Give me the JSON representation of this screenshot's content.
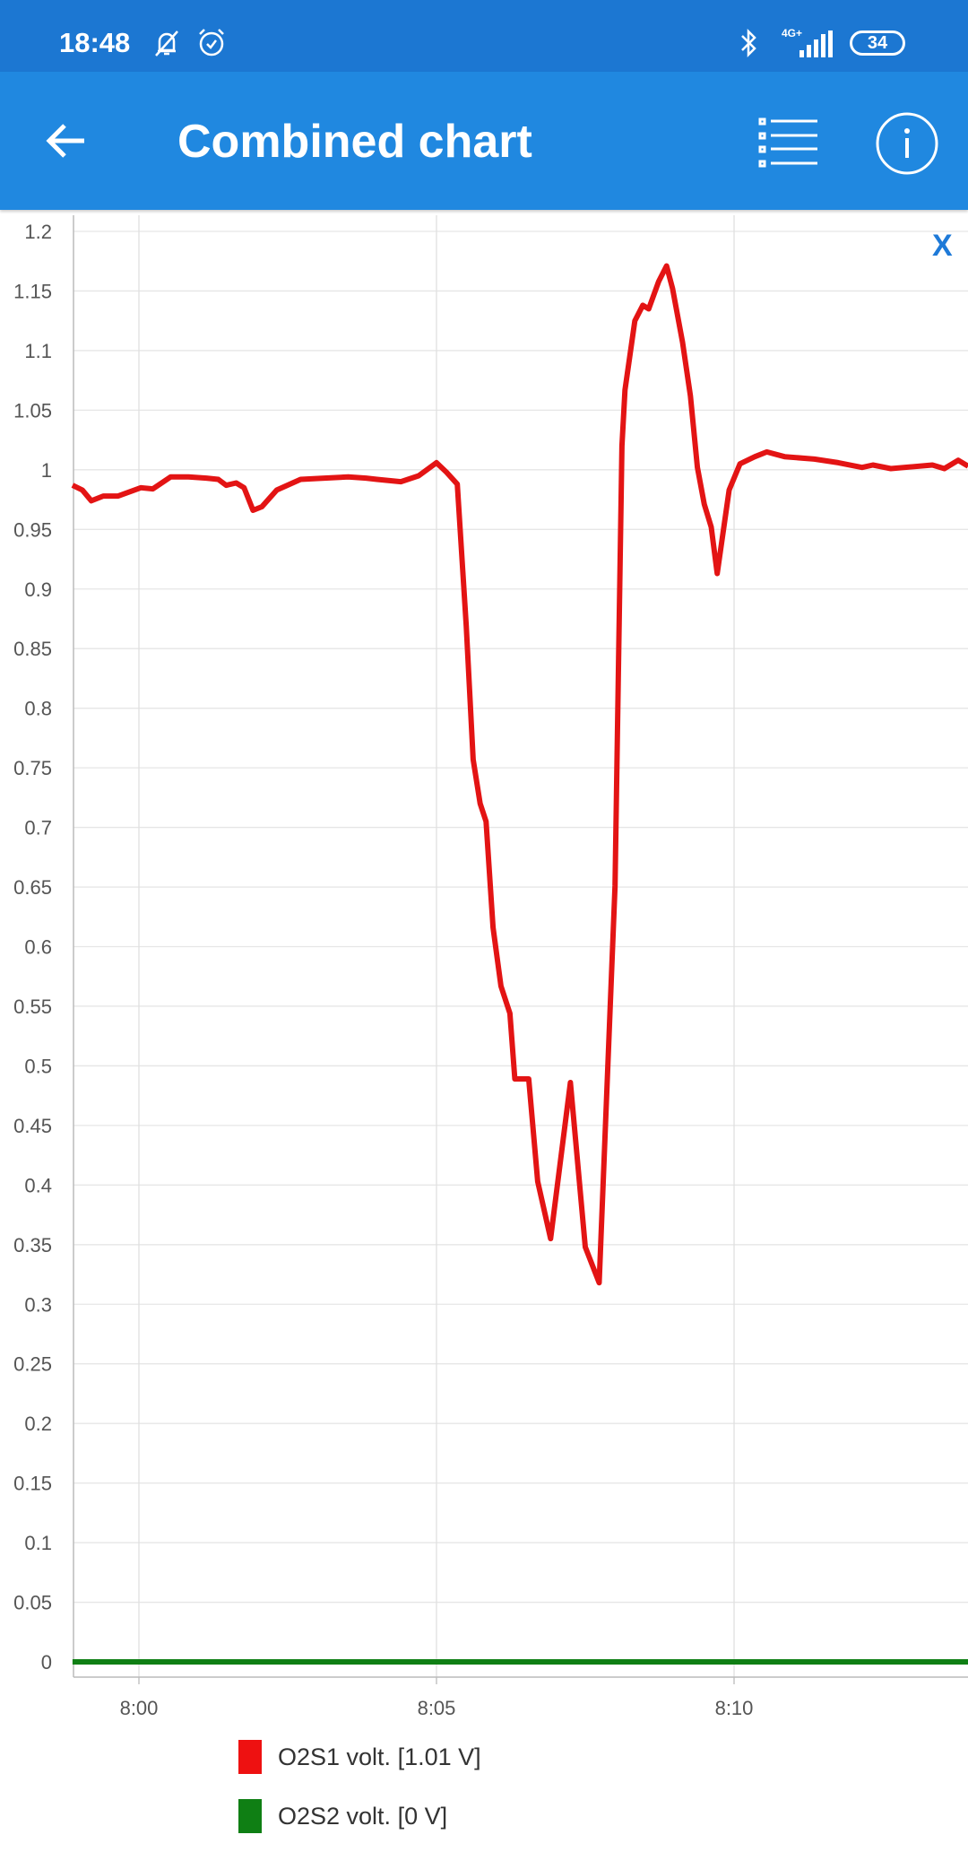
{
  "status_bar": {
    "time": "18:48",
    "icons": [
      "notifications-muted-icon",
      "alarm-icon",
      "bluetooth-icon",
      "signal-4g-icon",
      "battery-icon"
    ],
    "network": "4G+",
    "battery": "34"
  },
  "app_bar": {
    "title": "Combined chart",
    "back_icon": "arrow-left-icon",
    "list_icon": "list-icon",
    "info_icon": "info-icon",
    "background": "#2088e0"
  },
  "close_label": "X",
  "chart_data": {
    "type": "line",
    "title": "",
    "xlabel": "",
    "ylabel": "",
    "xlim": [
      "7:58:53",
      "8:13:56"
    ],
    "ylim": [
      0,
      1.2
    ],
    "x_ticks": [
      "8:00",
      "8:05",
      "8:10"
    ],
    "y_ticks": [
      "0",
      "0.05",
      "0.1",
      "0.15",
      "0.2",
      "0.25",
      "0.3",
      "0.35",
      "0.4",
      "0.45",
      "0.5",
      "0.55",
      "0.6",
      "0.65",
      "0.7",
      "0.75",
      "0.8",
      "0.85",
      "0.9",
      "0.95",
      "1",
      "1.05",
      "1.1",
      "1.15",
      "1.2"
    ],
    "grid": true,
    "legend": "bottom",
    "series": [
      {
        "name": "O2S1 volt. [1.01 V]",
        "color": "#e31414",
        "x": [
          "7:58:53",
          "7:59:03",
          "7:59:12",
          "7:59:24",
          "7:59:39",
          "8:00:02",
          "8:00:14",
          "8:00:32",
          "8:00:50",
          "8:01:08",
          "8:01:20",
          "8:01:28",
          "8:01:38",
          "8:01:46",
          "8:01:55",
          "8:02:04",
          "8:02:19",
          "8:02:43",
          "8:03:07",
          "8:03:31",
          "8:03:49",
          "8:04:00",
          "8:04:24",
          "8:04:42",
          "8:05:00",
          "8:05:10",
          "8:05:21",
          "8:05:30",
          "8:05:37",
          "8:05:44",
          "8:05:50",
          "8:05:57",
          "8:06:05",
          "8:06:14",
          "8:06:19",
          "8:06:33",
          "8:06:42",
          "8:06:55",
          "8:07:15",
          "8:07:30",
          "8:07:44",
          "8:08:00",
          "8:08:07",
          "8:08:10",
          "8:08:20",
          "8:08:28",
          "8:08:34",
          "8:08:44",
          "8:08:52",
          "8:08:58",
          "8:09:08",
          "8:09:16",
          "8:09:23",
          "8:09:30",
          "8:09:37",
          "8:09:43",
          "8:09:55",
          "8:10:06",
          "8:10:21",
          "8:10:33",
          "8:10:51",
          "8:11:21",
          "8:11:45",
          "8:12:09",
          "8:12:20",
          "8:12:38",
          "8:13:20",
          "8:13:32",
          "8:13:46",
          "8:13:56"
        ],
        "y": [
          0.987,
          0.983,
          0.974,
          0.978,
          0.978,
          0.985,
          0.984,
          0.994,
          0.994,
          0.993,
          0.992,
          0.987,
          0.989,
          0.985,
          0.966,
          0.969,
          0.983,
          0.992,
          0.993,
          0.994,
          0.993,
          0.992,
          0.99,
          0.995,
          1.006,
          0.998,
          0.988,
          0.869,
          0.757,
          0.72,
          0.705,
          0.616,
          0.567,
          0.544,
          0.489,
          0.489,
          0.403,
          0.355,
          0.486,
          0.348,
          0.318,
          0.651,
          1.02,
          1.067,
          1.125,
          1.138,
          1.135,
          1.158,
          1.171,
          1.152,
          1.107,
          1.062,
          1.002,
          0.971,
          0.952,
          0.913,
          0.983,
          1.005,
          1.011,
          1.015,
          1.011,
          1.009,
          1.006,
          1.002,
          1.004,
          1.001,
          1.004,
          1.001,
          1.008,
          1.003
        ]
      },
      {
        "name": "O2S2 volt. [0 V]",
        "color": "#0f7f14",
        "x": [
          "7:58:53",
          "8:13:56"
        ],
        "y": [
          0,
          0
        ]
      }
    ]
  }
}
